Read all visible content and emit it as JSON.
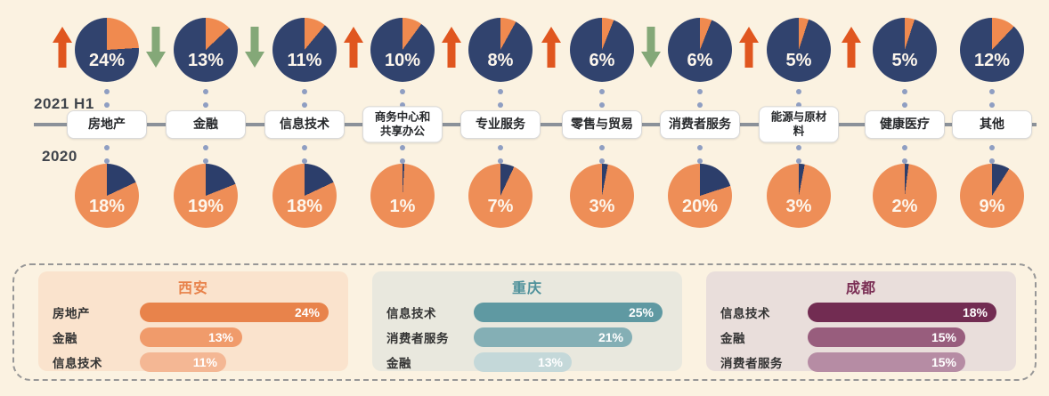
{
  "timeline": {
    "top_year": "2021 H1",
    "bottom_year": "2020",
    "categories": [
      {
        "label": "房地产",
        "v2021": 24,
        "pct_2021": "24%",
        "v2020": 18,
        "pct_2020": "18%",
        "trend": "up"
      },
      {
        "label": "金融",
        "v2021": 13,
        "pct_2021": "13%",
        "v2020": 19,
        "pct_2020": "19%",
        "trend": "down"
      },
      {
        "label": "信息技术",
        "v2021": 11,
        "pct_2021": "11%",
        "v2020": 18,
        "pct_2020": "18%",
        "trend": "down"
      },
      {
        "label": "商务中心和\n共享办公",
        "v2021": 10,
        "pct_2021": "10%",
        "v2020": 1,
        "pct_2020": "1%",
        "trend": "up"
      },
      {
        "label": "专业服务",
        "v2021": 8,
        "pct_2021": "8%",
        "v2020": 7,
        "pct_2020": "7%",
        "trend": "up"
      },
      {
        "label": "零售与贸易",
        "v2021": 6,
        "pct_2021": "6%",
        "v2020": 3,
        "pct_2020": "3%",
        "trend": "up"
      },
      {
        "label": "消费者服务",
        "v2021": 6,
        "pct_2021": "6%",
        "v2020": 20,
        "pct_2020": "20%",
        "trend": "down"
      },
      {
        "label": "能源与原材\n料",
        "v2021": 5,
        "pct_2021": "5%",
        "v2020": 3,
        "pct_2020": "3%",
        "trend": "up"
      },
      {
        "label": "健康医疗",
        "v2021": 5,
        "pct_2021": "5%",
        "v2020": 2,
        "pct_2020": "2%",
        "trend": "up"
      },
      {
        "label": "其他",
        "v2021": 12,
        "pct_2021": "12%",
        "v2020": 9,
        "pct_2020": "9%",
        "trend": "none"
      }
    ]
  },
  "cities": [
    {
      "name": "西安",
      "bg": "#fae3cd",
      "title_color": "#e8824a",
      "bars": [
        {
          "label": "房地产",
          "value": 24,
          "pct": "24%",
          "color": "#e8834b"
        },
        {
          "label": "金融",
          "value": 13,
          "pct": "13%",
          "color": "#f09b6b"
        },
        {
          "label": "信息技术",
          "value": 11,
          "pct": "11%",
          "color": "#f4b794"
        }
      ]
    },
    {
      "name": "重庆",
      "bg": "#e9e8de",
      "title_color": "#4f919b",
      "bars": [
        {
          "label": "信息技术",
          "value": 25,
          "pct": "25%",
          "color": "#5f99a2"
        },
        {
          "label": "消费者服务",
          "value": 21,
          "pct": "21%",
          "color": "#84afb5"
        },
        {
          "label": "金融",
          "value": 13,
          "pct": "13%",
          "color": "#c4d8d9"
        }
      ]
    },
    {
      "name": "成都",
      "bg": "#e9dedb",
      "title_color": "#7b2f55",
      "bars": [
        {
          "label": "信息技术",
          "value": 18,
          "pct": "18%",
          "color": "#722c52"
        },
        {
          "label": "金融",
          "value": 15,
          "pct": "15%",
          "color": "#985d7d"
        },
        {
          "label": "消费者服务",
          "value": 15,
          "pct": "15%",
          "color": "#b68ca4"
        }
      ]
    }
  ],
  "colors": {
    "background": "#fbf2e1",
    "pie_top_base": "#31436e",
    "pie_top_slice": "#f08a4f",
    "pie_bottom_base": "#ee8e57",
    "pie_bottom_slice": "#2c3e6b",
    "up_arrow": "#e0561f",
    "down_arrow": "#84a878",
    "dot": "#8f9ec2",
    "axis_line": "#8b9199",
    "panel_border": "#979797"
  },
  "chart_data": [
    {
      "type": "pie",
      "title": "2021 H1",
      "categories": [
        "房地产",
        "金融",
        "信息技术",
        "商务中心和共享办公",
        "专业服务",
        "零售与贸易",
        "消费者服务",
        "能源与原材料",
        "健康医疗",
        "其他"
      ],
      "values": [
        24,
        13,
        11,
        10,
        8,
        6,
        6,
        5,
        5,
        12
      ],
      "unit": "%",
      "trend_vs_2020": [
        "up",
        "down",
        "down",
        "up",
        "up",
        "up",
        "down",
        "up",
        "up",
        null
      ]
    },
    {
      "type": "pie",
      "title": "2020",
      "categories": [
        "房地产",
        "金融",
        "信息技术",
        "商务中心和共享办公",
        "专业服务",
        "零售与贸易",
        "消费者服务",
        "能源与原材料",
        "健康医疗",
        "其他"
      ],
      "values": [
        18,
        19,
        18,
        1,
        7,
        3,
        20,
        3,
        2,
        9
      ],
      "unit": "%"
    },
    {
      "type": "bar",
      "title": "西安",
      "categories": [
        "房地产",
        "金融",
        "信息技术"
      ],
      "values": [
        24,
        13,
        11
      ],
      "unit": "%"
    },
    {
      "type": "bar",
      "title": "重庆",
      "categories": [
        "信息技术",
        "消费者服务",
        "金融"
      ],
      "values": [
        25,
        21,
        13
      ],
      "unit": "%"
    },
    {
      "type": "bar",
      "title": "成都",
      "categories": [
        "信息技术",
        "金融",
        "消费者服务"
      ],
      "values": [
        18,
        15,
        15
      ],
      "unit": "%"
    }
  ]
}
